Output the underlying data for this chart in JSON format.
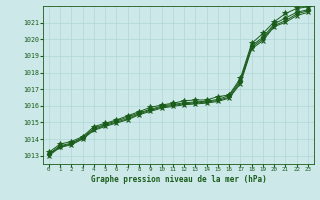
{
  "xlabel": "Graphe pression niveau de la mer (hPa)",
  "ylim": [
    1012.5,
    1022.0
  ],
  "xlim": [
    -0.5,
    23.5
  ],
  "yticks": [
    1013,
    1014,
    1015,
    1016,
    1017,
    1018,
    1019,
    1020,
    1021
  ],
  "xticks": [
    0,
    1,
    2,
    3,
    4,
    5,
    6,
    7,
    8,
    9,
    10,
    11,
    12,
    13,
    14,
    15,
    16,
    17,
    18,
    19,
    20,
    21,
    22,
    23
  ],
  "bg_color": "#cce8e8",
  "grid_color": "#b0d8d8",
  "line_color": "#1a5c1a",
  "series": [
    [
      1013.2,
      1013.7,
      1013.85,
      1014.15,
      1014.75,
      1014.95,
      1015.15,
      1015.4,
      1015.65,
      1015.9,
      1016.05,
      1016.15,
      1016.3,
      1016.35,
      1016.35,
      1016.55,
      1016.65,
      1017.65,
      1019.75,
      1020.35,
      1021.05,
      1021.55,
      1021.85,
      1021.95
    ],
    [
      1013.1,
      1013.6,
      1013.75,
      1014.1,
      1014.65,
      1014.88,
      1015.08,
      1015.32,
      1015.58,
      1015.78,
      1015.98,
      1016.08,
      1016.18,
      1016.23,
      1016.28,
      1016.38,
      1016.62,
      1017.52,
      1019.62,
      1020.12,
      1020.92,
      1021.28,
      1021.62,
      1021.78
    ],
    [
      1013.05,
      1013.55,
      1013.7,
      1014.05,
      1014.58,
      1014.82,
      1015.02,
      1015.22,
      1015.52,
      1015.72,
      1015.92,
      1016.02,
      1016.12,
      1016.17,
      1016.22,
      1016.32,
      1016.52,
      1017.42,
      1019.52,
      1020.02,
      1020.82,
      1021.12,
      1021.52,
      1021.72
    ],
    [
      1013.0,
      1013.5,
      1013.65,
      1014.0,
      1014.52,
      1014.76,
      1014.96,
      1015.16,
      1015.46,
      1015.66,
      1015.86,
      1015.96,
      1016.06,
      1016.11,
      1016.16,
      1016.26,
      1016.46,
      1017.32,
      1019.42,
      1019.92,
      1020.76,
      1021.02,
      1021.42,
      1021.62
    ]
  ]
}
